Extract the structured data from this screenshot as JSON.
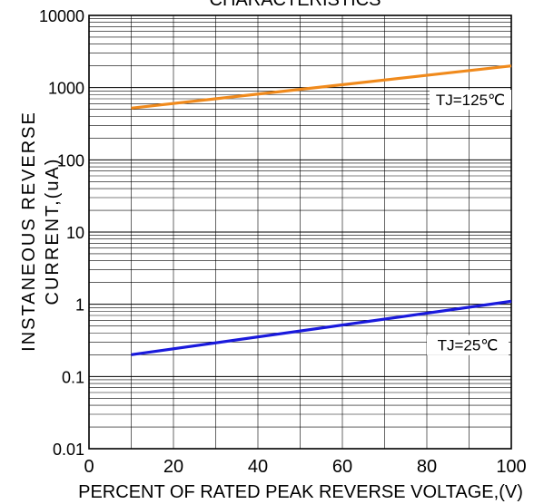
{
  "chart_data": {
    "type": "line",
    "title": "CHARACTERISTICS",
    "xlabel": "PERCENT OF RATED PEAK REVERSE VOLTAGE,(V)",
    "ylabel_line1": "INSTANEOUS REVERSE",
    "ylabel_line2": "CURRENT,(uA)",
    "xlim": [
      0,
      100
    ],
    "ylim": [
      0.01,
      10000
    ],
    "yscale": "log",
    "grid": true,
    "x_ticks": [
      "0",
      "20",
      "40",
      "60",
      "80",
      "100"
    ],
    "y_ticks": [
      "0.01",
      "0.1",
      "1",
      "10",
      "100",
      "1000",
      "10000"
    ],
    "series": [
      {
        "name": "TJ=125℃",
        "color": "#f08a1c",
        "x": [
          10,
          100
        ],
        "y": [
          520,
          2000
        ]
      },
      {
        "name": "TJ=25℃",
        "color": "#1a1adc",
        "x": [
          10,
          100
        ],
        "y": [
          0.2,
          1.1
        ]
      }
    ]
  }
}
